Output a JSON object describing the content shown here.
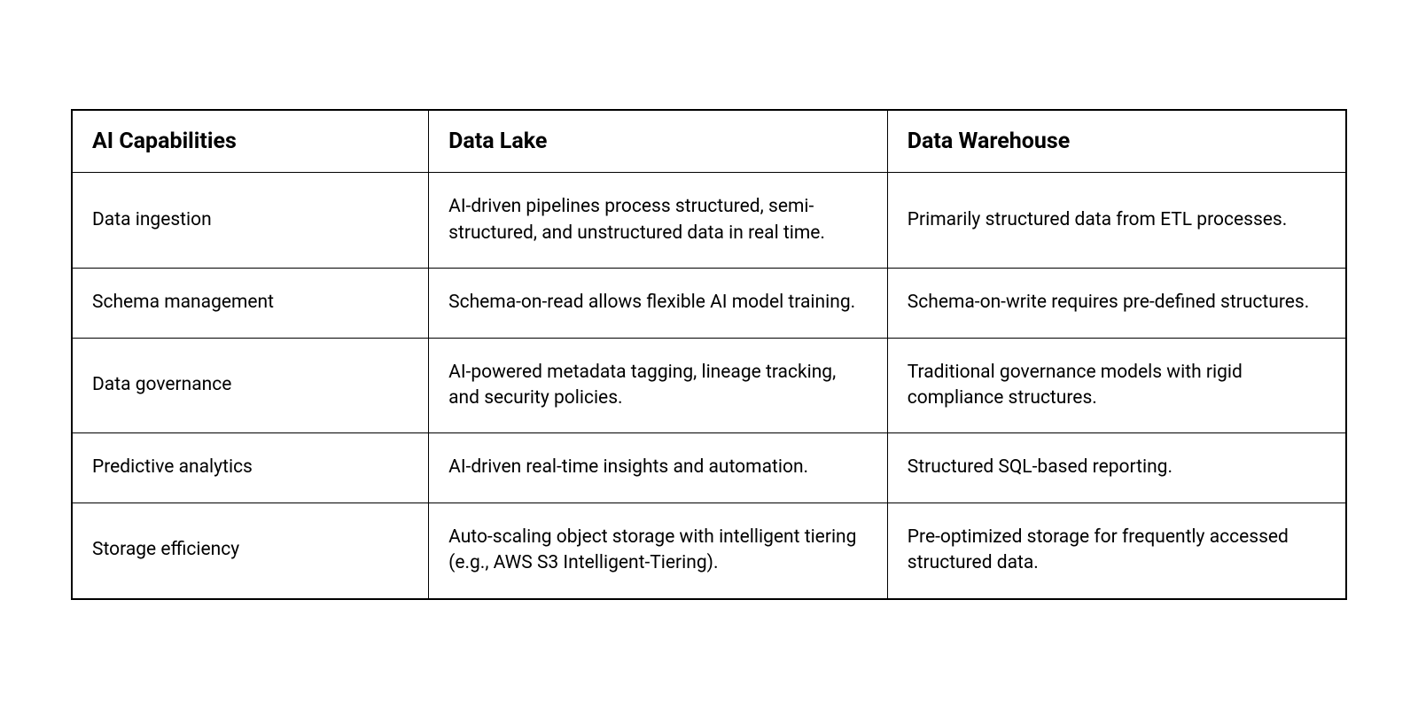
{
  "table": {
    "type": "table",
    "border_color": "#000000",
    "background_color": "#ffffff",
    "text_color": "#000000",
    "header_fontsize": 25,
    "header_fontweight": 700,
    "body_fontsize": 21,
    "body_fontweight": 400,
    "columns": [
      {
        "label": "AI Capabilities",
        "width_pct": 28
      },
      {
        "label": "Data Lake",
        "width_pct": 36
      },
      {
        "label": "Data Warehouse",
        "width_pct": 36
      }
    ],
    "rows": [
      {
        "capability": "Data ingestion",
        "data_lake": "AI-driven pipelines process structured, semi-structured, and unstructured data in real time.",
        "data_warehouse": "Primarily structured data from ETL processes."
      },
      {
        "capability": "Schema management",
        "data_lake": "Schema-on-read allows flexible AI model training.",
        "data_warehouse": "Schema-on-write requires pre-defined structures."
      },
      {
        "capability": "Data governance",
        "data_lake": "AI-powered metadata tagging, lineage tracking, and security policies.",
        "data_warehouse": "Traditional governance models with rigid compliance structures."
      },
      {
        "capability": "Predictive analytics",
        "data_lake": "AI-driven real-time insights and automation.",
        "data_warehouse": "Structured SQL-based reporting."
      },
      {
        "capability": "Storage efficiency",
        "data_lake": "Auto-scaling object storage with intelligent tiering (e.g., AWS S3 Intelligent-Tiering).",
        "data_warehouse": "Pre-optimized storage for frequently accessed structured data."
      }
    ]
  }
}
